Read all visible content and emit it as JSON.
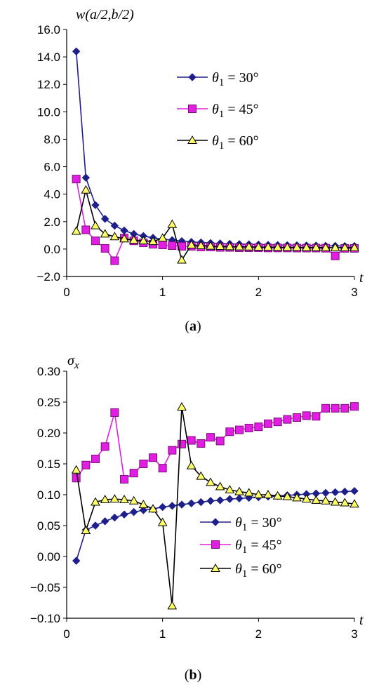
{
  "panels": [
    {
      "caption": "(a)"
    },
    {
      "caption": "(b)"
    }
  ],
  "chart_data": [
    {
      "type": "line",
      "panel_label": "(a)",
      "ylabel": "w(a/2,b/2)",
      "xlabel": "t",
      "xlim": [
        0,
        3
      ],
      "ylim": [
        -2,
        16
      ],
      "xticks": [
        0,
        1,
        2,
        3
      ],
      "yticks": [
        -2,
        0,
        2,
        4,
        6,
        8,
        10,
        12,
        14,
        16
      ],
      "ytick_labels": [
        "−2.0",
        "0.0",
        "2.0",
        "4.0",
        "6.0",
        "8.0",
        "10.0",
        "12.0",
        "14.0",
        "16.0"
      ],
      "xtick_labels": [
        "0",
        "1",
        "2",
        "3"
      ],
      "grid": false,
      "legend_position": "upper-right",
      "series": [
        {
          "name": "θ1 = 30°",
          "marker": "diamond",
          "color": "#1F1F8C",
          "points": [
            [
              0.1,
              14.4
            ],
            [
              0.2,
              5.2
            ],
            [
              0.3,
              3.2
            ],
            [
              0.4,
              2.2
            ],
            [
              0.5,
              1.7
            ],
            [
              0.6,
              1.35
            ],
            [
              0.7,
              1.1
            ],
            [
              0.8,
              0.95
            ],
            [
              0.9,
              0.82
            ],
            [
              1.0,
              0.72
            ],
            [
              1.1,
              0.65
            ],
            [
              1.2,
              0.58
            ],
            [
              1.3,
              0.52
            ],
            [
              1.4,
              0.48
            ],
            [
              1.5,
              0.44
            ],
            [
              1.6,
              0.41
            ],
            [
              1.7,
              0.38
            ],
            [
              1.8,
              0.36
            ],
            [
              1.9,
              0.34
            ],
            [
              2.0,
              0.32
            ],
            [
              2.1,
              0.3
            ],
            [
              2.2,
              0.29
            ],
            [
              2.3,
              0.28
            ],
            [
              2.4,
              0.27
            ],
            [
              2.5,
              0.26
            ],
            [
              2.6,
              0.25
            ],
            [
              2.7,
              0.24
            ],
            [
              2.8,
              0.23
            ],
            [
              2.9,
              0.22
            ],
            [
              3.0,
              0.22
            ]
          ]
        },
        {
          "name": "θ1 = 45°",
          "marker": "square",
          "color": "#E11EE1",
          "points": [
            [
              0.1,
              5.1
            ],
            [
              0.2,
              1.4
            ],
            [
              0.3,
              0.6
            ],
            [
              0.4,
              0.05
            ],
            [
              0.5,
              -0.85
            ],
            [
              0.6,
              0.8
            ],
            [
              0.7,
              0.6
            ],
            [
              0.8,
              0.45
            ],
            [
              0.9,
              0.35
            ],
            [
              1.0,
              0.3
            ],
            [
              1.1,
              0.25
            ],
            [
              1.2,
              0.2
            ],
            [
              1.3,
              0.2
            ],
            [
              1.4,
              0.15
            ],
            [
              1.5,
              0.15
            ],
            [
              1.6,
              0.12
            ],
            [
              1.7,
              0.12
            ],
            [
              1.8,
              0.1
            ],
            [
              1.9,
              0.1
            ],
            [
              2.0,
              0.1
            ],
            [
              2.1,
              0.08
            ],
            [
              2.2,
              0.08
            ],
            [
              2.3,
              0.08
            ],
            [
              2.4,
              0.07
            ],
            [
              2.5,
              0.07
            ],
            [
              2.6,
              0.07
            ],
            [
              2.7,
              0.06
            ],
            [
              2.8,
              -0.5
            ],
            [
              2.9,
              0.05
            ],
            [
              3.0,
              0.05
            ]
          ]
        },
        {
          "name": "θ1 = 60°",
          "marker": "triangle",
          "color": "#FFFF66",
          "points": [
            [
              0.1,
              1.3
            ],
            [
              0.2,
              4.3
            ],
            [
              0.3,
              1.7
            ],
            [
              0.4,
              1.1
            ],
            [
              0.5,
              0.9
            ],
            [
              0.6,
              0.75
            ],
            [
              0.7,
              0.65
            ],
            [
              0.8,
              0.6
            ],
            [
              0.9,
              0.55
            ],
            [
              1.0,
              0.8
            ],
            [
              1.1,
              1.8
            ],
            [
              1.2,
              -0.8
            ],
            [
              1.3,
              0.3
            ],
            [
              1.4,
              0.25
            ],
            [
              1.5,
              0.22
            ],
            [
              1.6,
              0.2
            ],
            [
              1.7,
              0.18
            ],
            [
              1.8,
              0.17
            ],
            [
              1.9,
              0.16
            ],
            [
              2.0,
              0.15
            ],
            [
              2.1,
              0.14
            ],
            [
              2.2,
              0.13
            ],
            [
              2.3,
              0.12
            ],
            [
              2.4,
              0.12
            ],
            [
              2.5,
              0.11
            ],
            [
              2.6,
              0.11
            ],
            [
              2.7,
              0.1
            ],
            [
              2.8,
              0.1
            ],
            [
              2.9,
              0.1
            ],
            [
              3.0,
              0.1
            ]
          ]
        }
      ]
    },
    {
      "type": "line",
      "panel_label": "(b)",
      "ylabel": "σx",
      "xlabel": "t",
      "xlim": [
        0,
        3
      ],
      "ylim": [
        -0.1,
        0.3
      ],
      "xticks": [
        0,
        1,
        2,
        3
      ],
      "yticks": [
        -0.1,
        -0.05,
        0,
        0.05,
        0.1,
        0.15,
        0.2,
        0.25,
        0.3
      ],
      "ytick_labels": [
        "−0.10",
        "−0.05",
        "0.00",
        "0.05",
        "0.10",
        "0.15",
        "0.20",
        "0.25",
        "0.30"
      ],
      "xtick_labels": [
        "0",
        "1",
        "2",
        "3"
      ],
      "grid": false,
      "legend_position": "lower-right",
      "series": [
        {
          "name": "θ1 = 30°",
          "marker": "diamond",
          "color": "#1F1F8C",
          "points": [
            [
              0.1,
              -0.007
            ],
            [
              0.2,
              0.043
            ],
            [
              0.3,
              0.05
            ],
            [
              0.4,
              0.057
            ],
            [
              0.5,
              0.063
            ],
            [
              0.6,
              0.068
            ],
            [
              0.7,
              0.072
            ],
            [
              0.8,
              0.075
            ],
            [
              0.9,
              0.077
            ],
            [
              1.0,
              0.08
            ],
            [
              1.1,
              0.082
            ],
            [
              1.2,
              0.084
            ],
            [
              1.3,
              0.086
            ],
            [
              1.4,
              0.088
            ],
            [
              1.5,
              0.09
            ],
            [
              1.6,
              0.091
            ],
            [
              1.7,
              0.093
            ],
            [
              1.8,
              0.094
            ],
            [
              1.9,
              0.095
            ],
            [
              2.0,
              0.096
            ],
            [
              2.1,
              0.097
            ],
            [
              2.2,
              0.098
            ],
            [
              2.3,
              0.099
            ],
            [
              2.4,
              0.1
            ],
            [
              2.5,
              0.101
            ],
            [
              2.6,
              0.102
            ],
            [
              2.7,
              0.103
            ],
            [
              2.8,
              0.104
            ],
            [
              2.9,
              0.105
            ],
            [
              3.0,
              0.106
            ]
          ]
        },
        {
          "name": "θ1 = 45°",
          "marker": "square",
          "color": "#E11EE1",
          "points": [
            [
              0.1,
              0.127
            ],
            [
              0.2,
              0.148
            ],
            [
              0.3,
              0.158
            ],
            [
              0.4,
              0.178
            ],
            [
              0.5,
              0.233
            ],
            [
              0.6,
              0.125
            ],
            [
              0.7,
              0.135
            ],
            [
              0.8,
              0.15
            ],
            [
              0.9,
              0.16
            ],
            [
              1.0,
              0.143
            ],
            [
              1.1,
              0.172
            ],
            [
              1.2,
              0.182
            ],
            [
              1.3,
              0.188
            ],
            [
              1.4,
              0.183
            ],
            [
              1.5,
              0.193
            ],
            [
              1.6,
              0.187
            ],
            [
              1.7,
              0.202
            ],
            [
              1.8,
              0.205
            ],
            [
              1.9,
              0.208
            ],
            [
              2.0,
              0.21
            ],
            [
              2.1,
              0.215
            ],
            [
              2.2,
              0.218
            ],
            [
              2.3,
              0.222
            ],
            [
              2.4,
              0.225
            ],
            [
              2.5,
              0.228
            ],
            [
              2.6,
              0.227
            ],
            [
              2.7,
              0.24
            ],
            [
              2.8,
              0.24
            ],
            [
              2.9,
              0.24
            ],
            [
              3.0,
              0.243
            ]
          ]
        },
        {
          "name": "θ1 = 60°",
          "marker": "triangle",
          "color": "#FFFF66",
          "points": [
            [
              0.1,
              0.14
            ],
            [
              0.2,
              0.042
            ],
            [
              0.3,
              0.088
            ],
            [
              0.4,
              0.092
            ],
            [
              0.5,
              0.093
            ],
            [
              0.6,
              0.092
            ],
            [
              0.7,
              0.09
            ],
            [
              0.8,
              0.084
            ],
            [
              0.9,
              0.077
            ],
            [
              1.0,
              0.055
            ],
            [
              1.1,
              -0.08
            ],
            [
              1.2,
              0.242
            ],
            [
              1.3,
              0.147
            ],
            [
              1.4,
              0.13
            ],
            [
              1.5,
              0.12
            ],
            [
              1.6,
              0.113
            ],
            [
              1.7,
              0.108
            ],
            [
              1.8,
              0.105
            ],
            [
              1.9,
              0.103
            ],
            [
              2.0,
              0.1
            ],
            [
              2.1,
              0.1
            ],
            [
              2.2,
              0.098
            ],
            [
              2.3,
              0.097
            ],
            [
              2.4,
              0.095
            ],
            [
              2.5,
              0.093
            ],
            [
              2.6,
              0.091
            ],
            [
              2.7,
              0.09
            ],
            [
              2.8,
              0.088
            ],
            [
              2.9,
              0.087
            ],
            [
              3.0,
              0.085
            ]
          ]
        }
      ]
    }
  ]
}
